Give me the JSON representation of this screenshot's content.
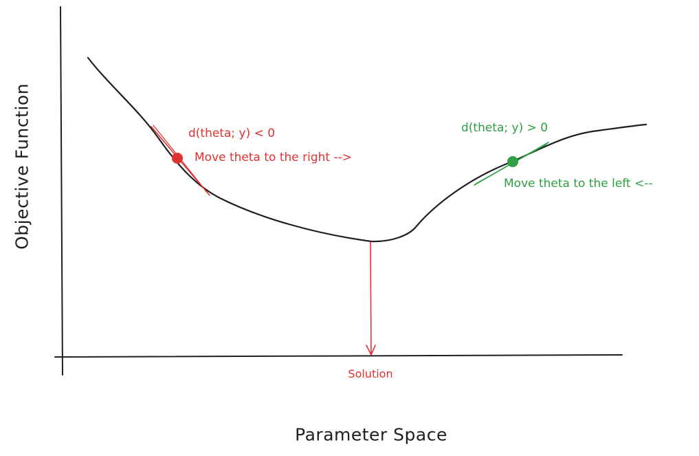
{
  "axes": {
    "y_label": "Objective Function",
    "x_label": "Parameter Space"
  },
  "solution_label": "Solution",
  "left_point": {
    "derivative_label": "d(theta; y) < 0",
    "move_label": "Move theta to the right -->",
    "color": "#e03131"
  },
  "right_point": {
    "derivative_label": "d(theta; y) > 0",
    "move_label": "Move theta to the left <--",
    "color": "#2f9e44"
  },
  "colors": {
    "curve": "#1e1e1e",
    "axis": "#1e1e1e",
    "solution_arrow": "#e03131"
  }
}
